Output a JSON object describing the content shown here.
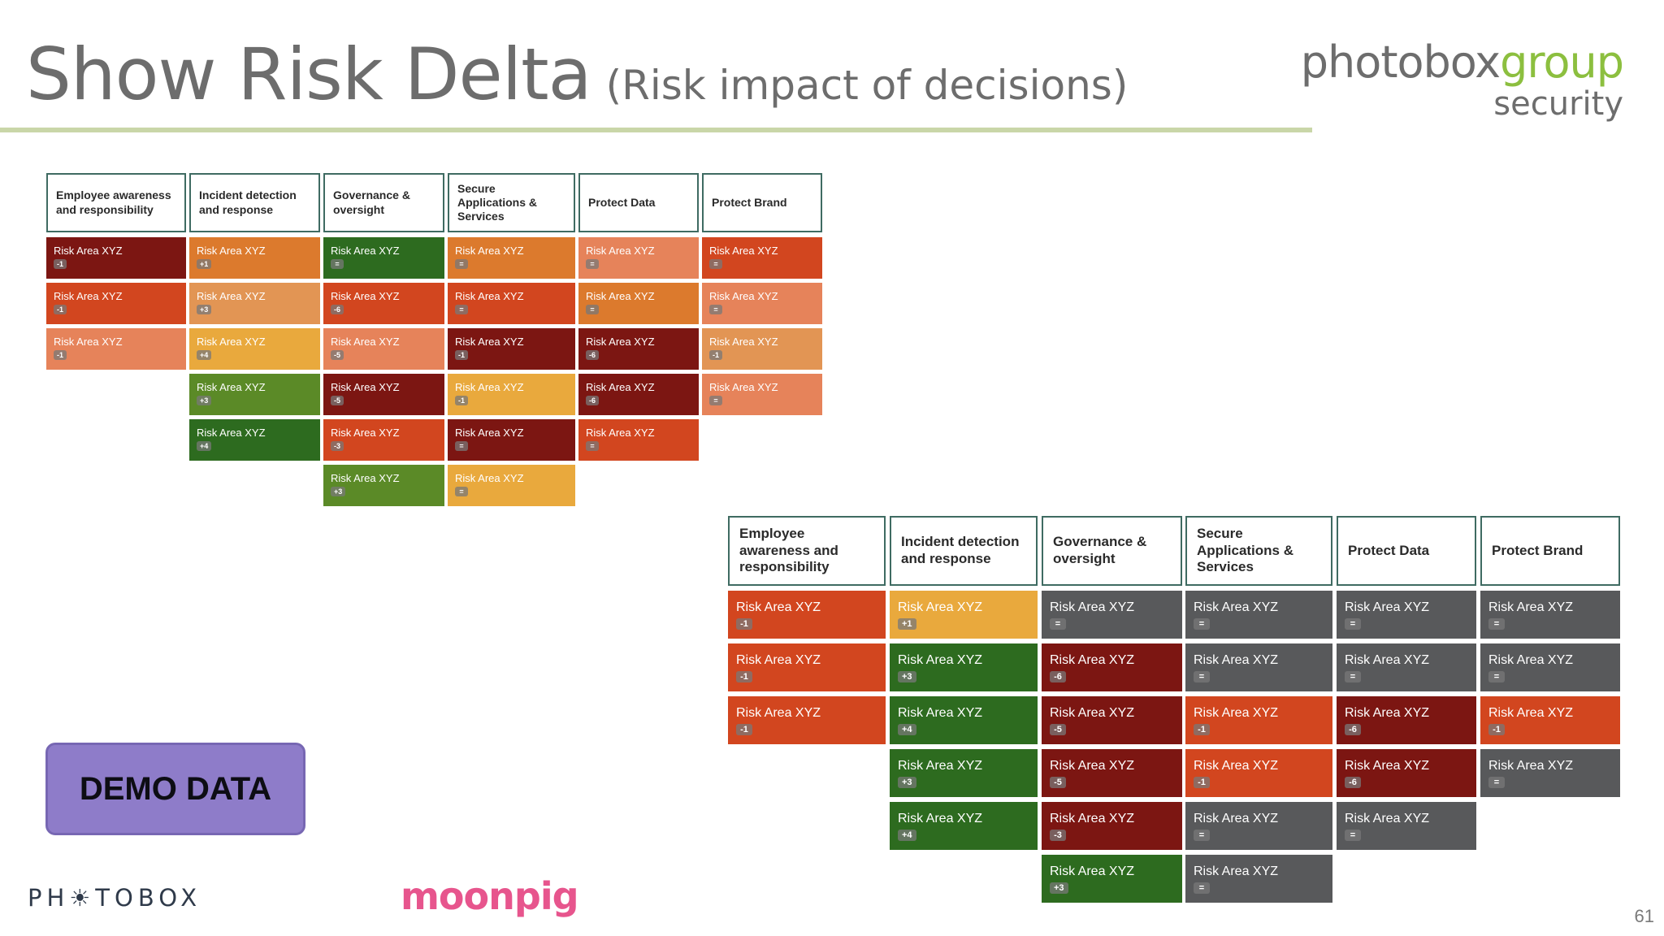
{
  "title": {
    "main": "Show Risk Delta",
    "sub": "(Risk impact of decisions)"
  },
  "brand": {
    "photobox": "photobox",
    "group": "group",
    "security": "security"
  },
  "colors": {
    "dark_red": "#7c1612",
    "red_orange": "#d2461f",
    "orange": "#dc7a2d",
    "salmon": "#e6835a",
    "yellow": "#e9a93d",
    "light_orange": "#e29554",
    "green": "#2d6b1f",
    "light_green": "#5b8a27",
    "gray": "#58595b",
    "title_rule": "#c9d6a8",
    "header_border": "#3f6b62",
    "demo_bg": "#8e7cc9"
  },
  "matrix_before": {
    "columns": [
      {
        "header": "Employee awareness and responsibility",
        "cells": [
          {
            "label": "Risk Area XYZ",
            "delta": "-1",
            "color": "#7c1612"
          },
          {
            "label": "Risk Area XYZ",
            "delta": "-1",
            "color": "#d2461f"
          },
          {
            "label": "Risk Area XYZ",
            "delta": "-1",
            "color": "#e6835a"
          }
        ]
      },
      {
        "header": "Incident detection and response",
        "cells": [
          {
            "label": "Risk Area XYZ",
            "delta": "+1",
            "color": "#dc7a2d"
          },
          {
            "label": "Risk Area XYZ",
            "delta": "+3",
            "color": "#e29554"
          },
          {
            "label": "Risk Area XYZ",
            "delta": "+4",
            "color": "#e9a93d"
          },
          {
            "label": "Risk Area XYZ",
            "delta": "+3",
            "color": "#5b8a27"
          },
          {
            "label": "Risk Area XYZ",
            "delta": "+4",
            "color": "#2d6b1f"
          }
        ]
      },
      {
        "header": "Governance & oversight",
        "cells": [
          {
            "label": "Risk Area XYZ",
            "delta": "=",
            "color": "#2d6b1f"
          },
          {
            "label": "Risk Area XYZ",
            "delta": "-6",
            "color": "#d2461f"
          },
          {
            "label": "Risk Area XYZ",
            "delta": "-5",
            "color": "#e6835a"
          },
          {
            "label": "Risk Area XYZ",
            "delta": "-5",
            "color": "#7c1612"
          },
          {
            "label": "Risk Area XYZ",
            "delta": "-3",
            "color": "#d2461f"
          },
          {
            "label": "Risk Area XYZ",
            "delta": "+3",
            "color": "#5b8a27"
          }
        ]
      },
      {
        "header": "Secure Applications & Services",
        "cells": [
          {
            "label": "Risk Area XYZ",
            "delta": "=",
            "color": "#dc7a2d"
          },
          {
            "label": "Risk Area XYZ",
            "delta": "=",
            "color": "#d2461f"
          },
          {
            "label": "Risk Area XYZ",
            "delta": "-1",
            "color": "#7c1612"
          },
          {
            "label": "Risk Area XYZ",
            "delta": "-1",
            "color": "#e9a93d"
          },
          {
            "label": "Risk Area XYZ",
            "delta": "=",
            "color": "#7c1612"
          },
          {
            "label": "Risk Area XYZ",
            "delta": "=",
            "color": "#e9a93d"
          }
        ]
      },
      {
        "header": "Protect Data",
        "cells": [
          {
            "label": "Risk Area XYZ",
            "delta": "=",
            "color": "#e6835a"
          },
          {
            "label": "Risk Area XYZ",
            "delta": "=",
            "color": "#dc7a2d"
          },
          {
            "label": "Risk Area XYZ",
            "delta": "-6",
            "color": "#7c1612"
          },
          {
            "label": "Risk Area XYZ",
            "delta": "-6",
            "color": "#7c1612"
          },
          {
            "label": "Risk Area XYZ",
            "delta": "=",
            "color": "#d2461f"
          }
        ]
      },
      {
        "header": "Protect Brand",
        "cells": [
          {
            "label": "Risk Area XYZ",
            "delta": "=",
            "color": "#d2461f"
          },
          {
            "label": "Risk Area XYZ",
            "delta": "=",
            "color": "#e6835a"
          },
          {
            "label": "Risk Area XYZ",
            "delta": "-1",
            "color": "#e29554"
          },
          {
            "label": "Risk Area XYZ",
            "delta": "=",
            "color": "#e6835a"
          }
        ]
      }
    ]
  },
  "matrix_after": {
    "columns": [
      {
        "header": "Employee awareness and responsibility",
        "cells": [
          {
            "label": "Risk Area XYZ",
            "delta": "-1",
            "color": "#d2461f"
          },
          {
            "label": "Risk Area XYZ",
            "delta": "-1",
            "color": "#d2461f"
          },
          {
            "label": "Risk Area XYZ",
            "delta": "-1",
            "color": "#d2461f"
          }
        ]
      },
      {
        "header": "Incident detection and response",
        "cells": [
          {
            "label": "Risk Area XYZ",
            "delta": "+1",
            "color": "#e9a93d"
          },
          {
            "label": "Risk Area XYZ",
            "delta": "+3",
            "color": "#2d6b1f"
          },
          {
            "label": "Risk Area XYZ",
            "delta": "+4",
            "color": "#2d6b1f"
          },
          {
            "label": "Risk Area XYZ",
            "delta": "+3",
            "color": "#2d6b1f"
          },
          {
            "label": "Risk Area XYZ",
            "delta": "+4",
            "color": "#2d6b1f"
          }
        ]
      },
      {
        "header": "Governance & oversight",
        "cells": [
          {
            "label": "Risk Area XYZ",
            "delta": "=",
            "color": "#58595b"
          },
          {
            "label": "Risk Area XYZ",
            "delta": "-6",
            "color": "#7c1612"
          },
          {
            "label": "Risk Area XYZ",
            "delta": "-5",
            "color": "#7c1612"
          },
          {
            "label": "Risk Area XYZ",
            "delta": "-5",
            "color": "#7c1612"
          },
          {
            "label": "Risk Area XYZ",
            "delta": "-3",
            "color": "#7c1612"
          },
          {
            "label": "Risk Area XYZ",
            "delta": "+3",
            "color": "#2d6b1f"
          }
        ]
      },
      {
        "header": "Secure Applications & Services",
        "cells": [
          {
            "label": "Risk Area XYZ",
            "delta": "=",
            "color": "#58595b"
          },
          {
            "label": "Risk Area XYZ",
            "delta": "=",
            "color": "#58595b"
          },
          {
            "label": "Risk Area XYZ",
            "delta": "-1",
            "color": "#d2461f"
          },
          {
            "label": "Risk Area XYZ",
            "delta": "-1",
            "color": "#d2461f"
          },
          {
            "label": "Risk Area XYZ",
            "delta": "=",
            "color": "#58595b"
          },
          {
            "label": "Risk Area XYZ",
            "delta": "=",
            "color": "#58595b"
          }
        ]
      },
      {
        "header": "Protect Data",
        "cells": [
          {
            "label": "Risk Area XYZ",
            "delta": "=",
            "color": "#58595b"
          },
          {
            "label": "Risk Area XYZ",
            "delta": "=",
            "color": "#58595b"
          },
          {
            "label": "Risk Area XYZ",
            "delta": "-6",
            "color": "#7c1612"
          },
          {
            "label": "Risk Area XYZ",
            "delta": "-6",
            "color": "#7c1612"
          },
          {
            "label": "Risk Area XYZ",
            "delta": "=",
            "color": "#58595b"
          }
        ]
      },
      {
        "header": "Protect Brand",
        "cells": [
          {
            "label": "Risk Area XYZ",
            "delta": "=",
            "color": "#58595b"
          },
          {
            "label": "Risk Area XYZ",
            "delta": "=",
            "color": "#58595b"
          },
          {
            "label": "Risk Area XYZ",
            "delta": "-1",
            "color": "#d2461f"
          },
          {
            "label": "Risk Area XYZ",
            "delta": "=",
            "color": "#58595b"
          }
        ]
      }
    ]
  },
  "demo_label": "DEMO DATA",
  "footer": {
    "photobox_logo": "PH☀TOBOX",
    "moonpig_logo": "moonpig",
    "page_number": "61"
  }
}
